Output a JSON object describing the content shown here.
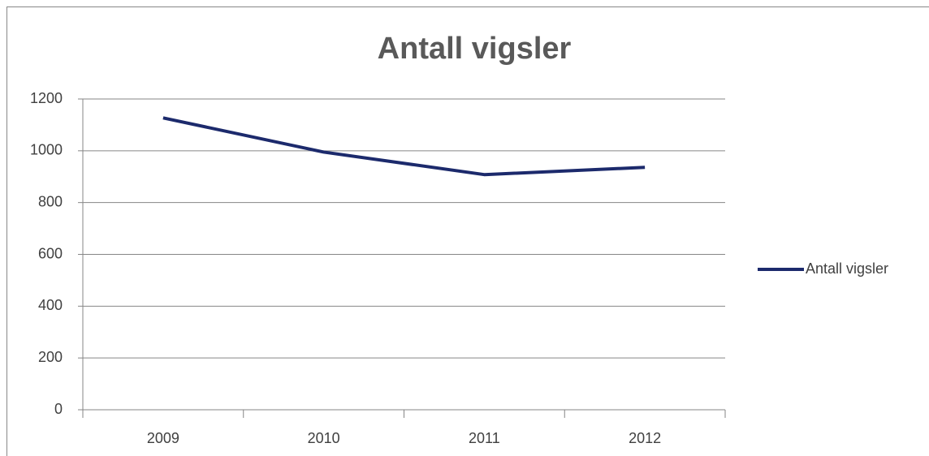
{
  "chart_data": {
    "type": "line",
    "title": "Antall vigsler",
    "categories": [
      "2009",
      "2010",
      "2011",
      "2012"
    ],
    "series": [
      {
        "name": "Antall vigsler",
        "color": "#1c2a6c",
        "values": [
          1127,
          995,
          908,
          936
        ]
      }
    ],
    "ylim": [
      0,
      1200
    ],
    "yticks": [
      0,
      200,
      400,
      600,
      800,
      1000,
      1200
    ],
    "grid": true,
    "legend": "right"
  }
}
